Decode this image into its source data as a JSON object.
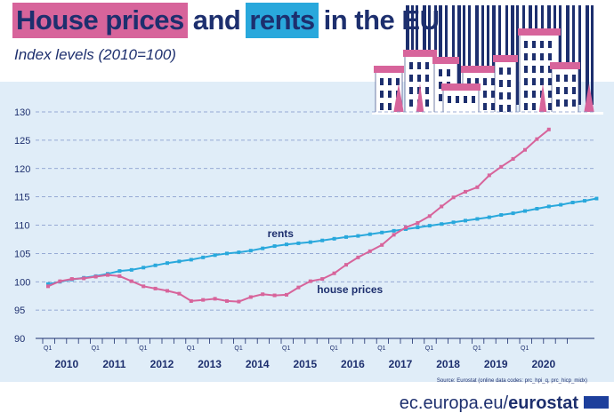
{
  "title": {
    "part1": "House prices",
    "part2": "and",
    "part3": "rents",
    "part4": "in the EU"
  },
  "subtitle": "Index levels (2010=100)",
  "source": "Source: Eurostat (online data codes: prc_hpi_q, prc_hicp_midx)",
  "footer": {
    "site": "ec.europa.eu/",
    "brand": "eurostat"
  },
  "colors": {
    "title": "#1d2f6e",
    "house_prices_highlight": "#d7649b",
    "rents_highlight": "#29a8dc",
    "rents_line": "#29a8dc",
    "house_prices_line": "#d7649b",
    "plot_background": "#e0edf8"
  },
  "chart_data": {
    "type": "line",
    "quarter_tick_label": "Q1",
    "years": [
      "2010",
      "2011",
      "2012",
      "2013",
      "2014",
      "2015",
      "2016",
      "2017",
      "2018",
      "2019",
      "2020"
    ],
    "x_start": "2010-Q1",
    "x_end": "2020-Q4",
    "ylim": [
      90,
      130
    ],
    "yticks": [
      90,
      95,
      100,
      105,
      110,
      115,
      120,
      125,
      130
    ],
    "grid": "horizontal-dashed",
    "series": [
      {
        "name": "rents",
        "color": "#29a8dc",
        "values": [
          99.6,
          100.0,
          100.4,
          100.7,
          101.0,
          101.4,
          101.9,
          102.1,
          102.5,
          102.9,
          103.3,
          103.6,
          103.9,
          104.3,
          104.7,
          105.0,
          105.2,
          105.5,
          105.9,
          106.3,
          106.6,
          106.8,
          107.0,
          107.3,
          107.6,
          107.9,
          108.1,
          108.4,
          108.7,
          109.0,
          109.3,
          109.6,
          109.9,
          110.2,
          110.5,
          110.8,
          111.1,
          111.4,
          111.8,
          112.1,
          112.5,
          112.9,
          113.3,
          113.6,
          114.0,
          114.3,
          114.7
        ]
      },
      {
        "name": "house prices",
        "color": "#d7649b",
        "values": [
          99.2,
          100.1,
          100.5,
          100.6,
          100.9,
          101.2,
          101.0,
          100.1,
          99.2,
          98.8,
          98.4,
          97.9,
          96.6,
          96.8,
          97.0,
          96.6,
          96.5,
          97.3,
          97.8,
          97.6,
          97.7,
          99.0,
          100.1,
          100.5,
          101.5,
          103.0,
          104.3,
          105.4,
          106.5,
          108.3,
          109.6,
          110.4,
          111.6,
          113.3,
          114.9,
          115.9,
          116.7,
          118.8,
          120.3,
          121.7,
          123.3,
          125.2,
          126.9
        ]
      }
    ],
    "annotations": [
      {
        "text": "rents",
        "series": "rents"
      },
      {
        "text": "house prices",
        "series": "house prices"
      }
    ]
  }
}
